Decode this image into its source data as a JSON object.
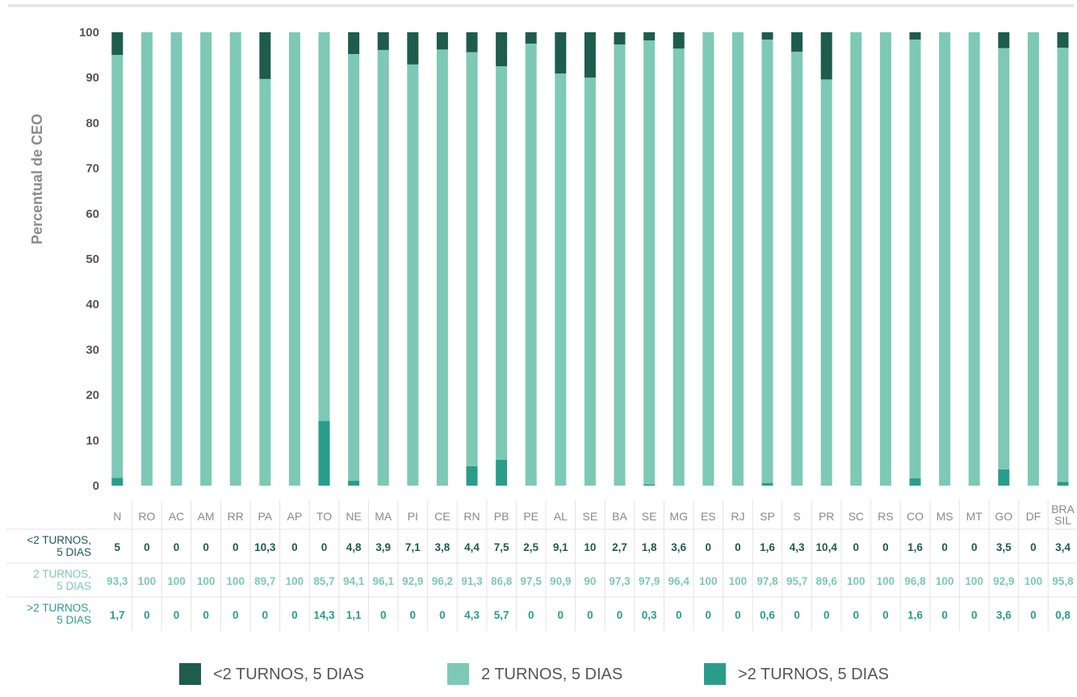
{
  "chart_data": {
    "type": "bar",
    "stacked": true,
    "ylabel": "Percentual de CEO",
    "ylim": [
      0,
      100
    ],
    "yticks": [
      "0",
      "10",
      "20",
      "30",
      "40",
      "50",
      "60",
      "70",
      "80",
      "90",
      "100"
    ],
    "categories": [
      "N",
      "RO",
      "AC",
      "AM",
      "RR",
      "PA",
      "AP",
      "TO",
      "NE",
      "MA",
      "PI",
      "CE",
      "RN",
      "PB",
      "PE",
      "AL",
      "SE",
      "BA",
      "SE",
      "MG",
      "ES",
      "RJ",
      "SP",
      "S",
      "PR",
      "SC",
      "RS",
      "CO",
      "MS",
      "MT",
      "GO",
      "DF",
      "BRA\nSIL"
    ],
    "series": [
      {
        "name": "<2 TURNOS, 5 DIAS",
        "row_label": "<2 TURNOS,\n5 DIAS",
        "color": "#1e5c4d",
        "values": [
          5,
          0,
          0,
          0,
          0,
          10.3,
          0,
          0,
          4.8,
          3.9,
          7.1,
          3.8,
          4.4,
          7.5,
          2.5,
          9.1,
          10,
          2.7,
          1.8,
          3.6,
          0,
          0,
          1.6,
          4.3,
          10.4,
          0,
          0,
          1.6,
          0,
          0,
          3.5,
          0,
          3.4
        ],
        "labels": [
          "5",
          "0",
          "0",
          "0",
          "0",
          "10,3",
          "0",
          "0",
          "4,8",
          "3,9",
          "7,1",
          "3,8",
          "4,4",
          "7,5",
          "2,5",
          "9,1",
          "10",
          "2,7",
          "1,8",
          "3,6",
          "0",
          "0",
          "1,6",
          "4,3",
          "10,4",
          "0",
          "0",
          "1,6",
          "0",
          "0",
          "3,5",
          "0",
          "3,4"
        ]
      },
      {
        "name": "2 TURNOS, 5 DIAS",
        "row_label": "2 TURNOS,\n5 DIAS",
        "color": "#7dc9b5",
        "values": [
          93.3,
          100,
          100,
          100,
          100,
          89.7,
          100,
          85.7,
          94.1,
          96.1,
          92.9,
          96.2,
          91.3,
          86.8,
          97.5,
          90.9,
          90,
          97.3,
          97.9,
          96.4,
          100,
          100,
          97.8,
          95.7,
          89.6,
          100,
          100,
          96.8,
          100,
          100,
          92.9,
          100,
          95.8
        ],
        "labels": [
          "93,3",
          "100",
          "100",
          "100",
          "100",
          "89,7",
          "100",
          "85,7",
          "94,1",
          "96,1",
          "92,9",
          "96,2",
          "91,3",
          "86,8",
          "97,5",
          "90,9",
          "90",
          "97,3",
          "97,9",
          "96,4",
          "100",
          "100",
          "97,8",
          "95,7",
          "89,6",
          "100",
          "100",
          "96,8",
          "100",
          "100",
          "92,9",
          "100",
          "95,8"
        ]
      },
      {
        "name": ">2 TURNOS, 5 DIAS",
        "row_label": ">2 TURNOS,\n5 DIAS",
        "color": "#2a9d8a",
        "values": [
          1.7,
          0,
          0,
          0,
          0,
          0,
          0,
          14.3,
          1.1,
          0,
          0,
          0,
          4.3,
          5.7,
          0,
          0,
          0,
          0,
          0.3,
          0,
          0,
          0,
          0.6,
          0,
          0,
          0,
          0,
          1.6,
          0,
          0,
          3.6,
          0,
          0.8
        ],
        "labels": [
          "1,7",
          "0",
          "0",
          "0",
          "0",
          "0",
          "0",
          "14,3",
          "1,1",
          "0",
          "0",
          "0",
          "4,3",
          "5,7",
          "0",
          "0",
          "0",
          "0",
          "0,3",
          "0",
          "0",
          "0",
          "0,6",
          "0",
          "0",
          "0",
          "0",
          "1,6",
          "0",
          "0",
          "3,6",
          "0",
          "0,8"
        ]
      }
    ],
    "legend_position": "bottom",
    "grid": false
  },
  "colors": {
    "top_rule": "#e6e6e6",
    "table_lines": "#e3e3e3",
    "row1_text": "#1e5c4d",
    "row2_text": "#7dc9b5",
    "row3_text": "#2a9d8a"
  }
}
